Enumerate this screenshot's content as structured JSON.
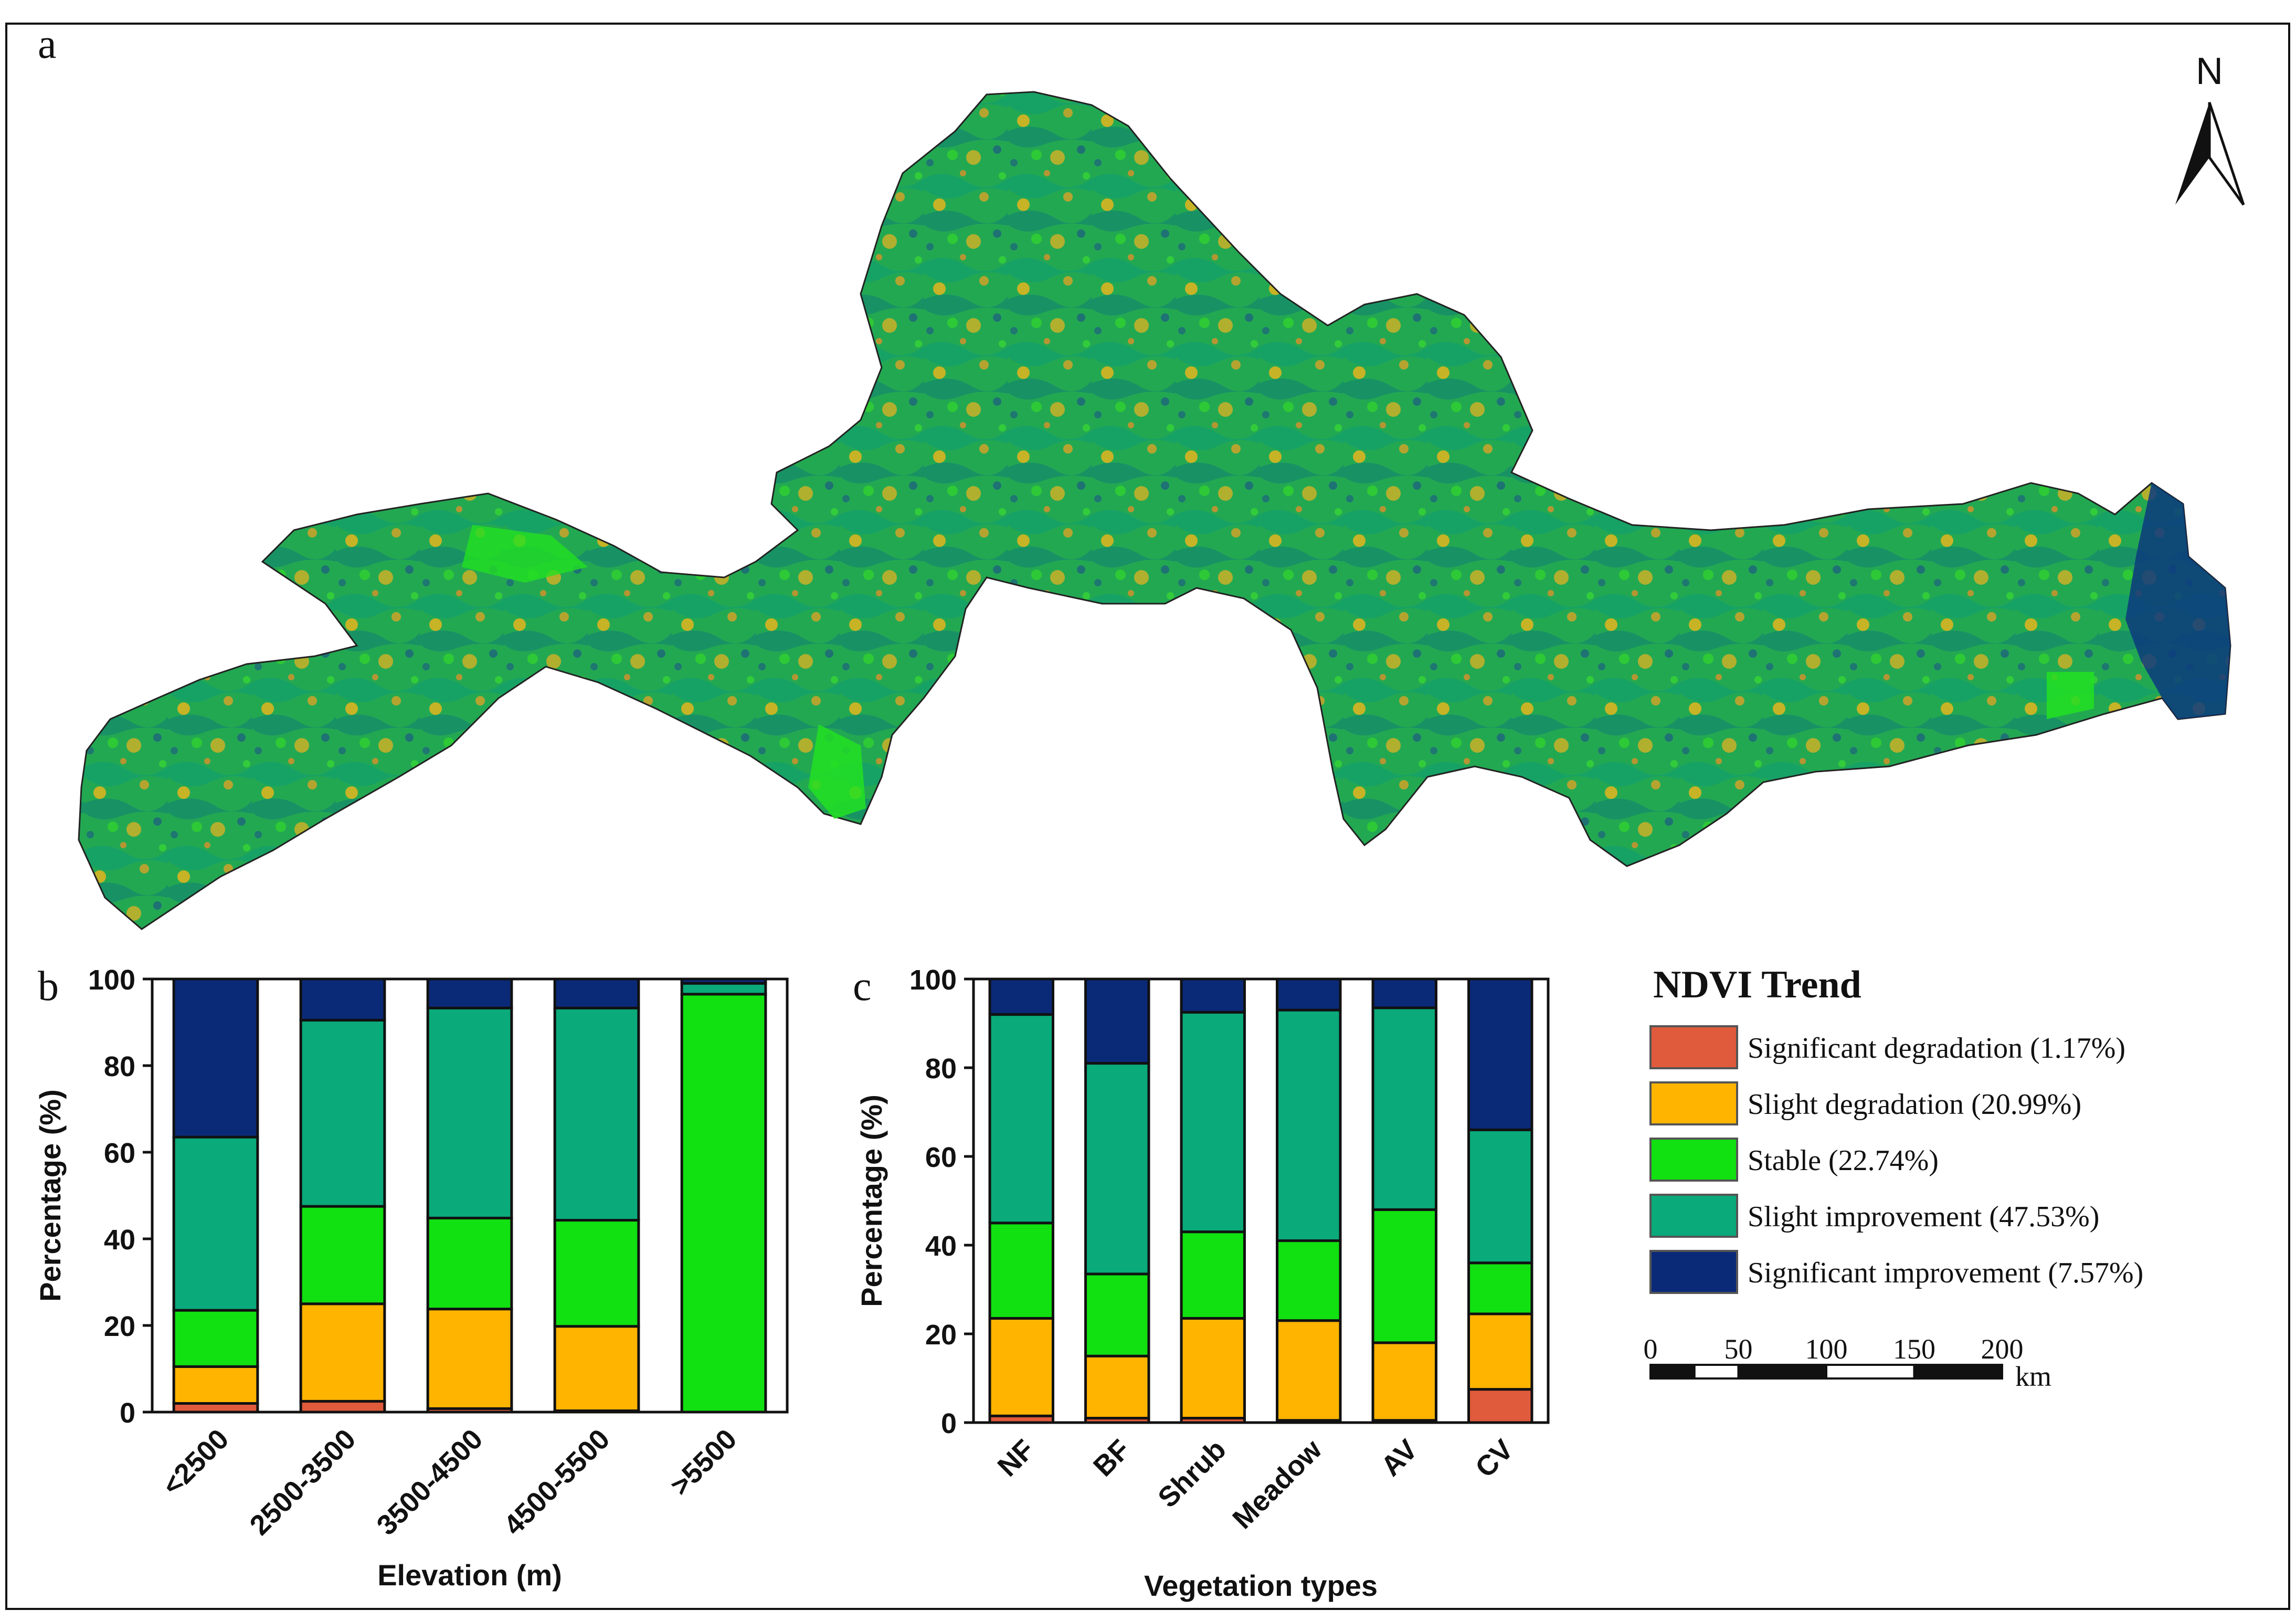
{
  "panels": {
    "a": "a",
    "b": "b",
    "c": "c"
  },
  "north_label": "N",
  "legend": {
    "title": "NDVI Trend",
    "items": [
      {
        "label": "Significant degradation (1.17%)",
        "color": "#e05a3c",
        "category": "Significant degradation",
        "percent": 1.17
      },
      {
        "label": "Slight degradation (20.99%)",
        "color": "#ffb400",
        "category": "Slight degradation",
        "percent": 20.99
      },
      {
        "label": "Stable (22.74%)",
        "color": "#11e011",
        "category": "Stable",
        "percent": 22.74
      },
      {
        "label": "Slight improvement (47.53%)",
        "color": "#0aaa7a",
        "category": "Slight improvement",
        "percent": 47.53
      },
      {
        "label": "Significant improvement (7.57%)",
        "color": "#0a2a78",
        "category": "Significant improvement",
        "percent": 7.57
      }
    ]
  },
  "scalebar": {
    "ticks": [
      "0",
      "50",
      "100",
      "150",
      "200"
    ],
    "unit": "km"
  },
  "chart_data": [
    {
      "id": "b",
      "type": "bar",
      "stacked": true,
      "title": "",
      "xlabel": "Elevation (m)",
      "ylabel": "Percentage (%)",
      "ylim": [
        0,
        100
      ],
      "yticks": [
        "0",
        "20",
        "40",
        "60",
        "80",
        "100"
      ],
      "categories": [
        "<2500",
        "2500-3500",
        "3500-4500",
        "4500-5500",
        ">5500"
      ],
      "series": [
        {
          "name": "Significant degradation",
          "values": [
            2.0,
            2.5,
            0.8,
            0.3,
            0.0
          ]
        },
        {
          "name": "Slight degradation",
          "values": [
            8.5,
            22.5,
            23.0,
            19.5,
            0.0
          ]
        },
        {
          "name": "Stable",
          "values": [
            13.0,
            22.5,
            21.0,
            24.5,
            96.5
          ]
        },
        {
          "name": "Slight improvement",
          "values": [
            40.0,
            43.0,
            48.5,
            49.0,
            2.5
          ]
        },
        {
          "name": "Significant improvement",
          "values": [
            36.5,
            9.5,
            6.7,
            6.7,
            1.0
          ]
        }
      ]
    },
    {
      "id": "c",
      "type": "bar",
      "stacked": true,
      "title": "",
      "xlabel": "Vegetation types",
      "ylabel": "Percentage (%)",
      "ylim": [
        0,
        100
      ],
      "yticks": [
        "0",
        "20",
        "40",
        "60",
        "80",
        "100"
      ],
      "categories": [
        "NF",
        "BF",
        "Shrub",
        "Meadow",
        "AV",
        "CV"
      ],
      "series": [
        {
          "name": "Significant degradation",
          "values": [
            1.5,
            1.0,
            1.0,
            0.5,
            0.5,
            7.5
          ]
        },
        {
          "name": "Slight degradation",
          "values": [
            22.0,
            14.0,
            22.5,
            22.5,
            17.5,
            17.0
          ]
        },
        {
          "name": "Stable",
          "values": [
            21.5,
            18.5,
            19.5,
            18.0,
            30.0,
            11.5
          ]
        },
        {
          "name": "Slight improvement",
          "values": [
            47.0,
            47.5,
            49.5,
            52.0,
            45.5,
            30.0
          ]
        },
        {
          "name": "Significant improvement",
          "values": [
            8.0,
            19.0,
            7.5,
            7.0,
            6.5,
            34.0
          ]
        }
      ]
    }
  ]
}
